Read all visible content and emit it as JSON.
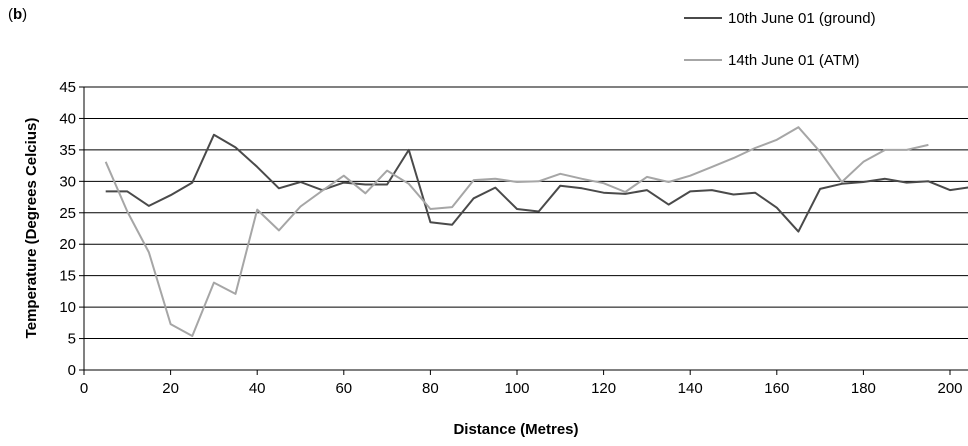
{
  "panel": {
    "open": "(",
    "letter": "b",
    "close": ")"
  },
  "chart_data": {
    "type": "line",
    "xlabel": "Distance (Metres)",
    "ylabel": "Temperature (Degrees Celcius)",
    "xlim": [
      0,
      200
    ],
    "ylim": [
      0,
      45
    ],
    "xticks": [
      0,
      20,
      40,
      60,
      80,
      100,
      120,
      140,
      160,
      180,
      200
    ],
    "yticks": [
      0,
      5,
      10,
      15,
      20,
      25,
      30,
      35,
      40,
      45
    ],
    "grid": "horizontal",
    "legend_position": "top-right",
    "series": [
      {
        "name": "10th June 01 (ground)",
        "color": "#4a4a4a",
        "x": [
          5,
          10,
          15,
          20,
          25,
          30,
          35,
          40,
          45,
          50,
          55,
          60,
          65,
          70,
          75,
          80,
          85,
          90,
          95,
          100,
          105,
          110,
          115,
          120,
          125,
          130,
          135,
          140,
          145,
          150,
          155,
          160,
          165,
          170,
          175,
          180,
          185,
          190,
          195,
          200,
          205
        ],
        "y": [
          28.4,
          28.4,
          26.1,
          27.8,
          29.8,
          37.4,
          35.4,
          32.3,
          28.9,
          29.9,
          28.6,
          29.8,
          29.5,
          29.5,
          35.0,
          23.5,
          23.1,
          27.3,
          29.0,
          25.6,
          25.2,
          29.3,
          28.9,
          28.2,
          28.0,
          28.6,
          26.3,
          28.4,
          28.6,
          27.9,
          28.2,
          25.8,
          22.0,
          28.8,
          29.6,
          29.9,
          30.4,
          29.8,
          30.0,
          28.6,
          29.1
        ]
      },
      {
        "name": "14th June 01 (ATM)",
        "color": "#a6a6a6",
        "x": [
          5,
          10,
          15,
          20,
          25,
          30,
          35,
          40,
          45,
          50,
          55,
          60,
          65,
          70,
          75,
          80,
          85,
          90,
          95,
          100,
          105,
          110,
          115,
          120,
          125,
          130,
          135,
          140,
          145,
          150,
          155,
          160,
          165,
          170,
          175,
          180,
          185,
          190,
          195
        ],
        "y": [
          33.1,
          25.2,
          18.7,
          7.3,
          5.4,
          13.9,
          12.1,
          25.5,
          22.2,
          26.0,
          28.5,
          30.9,
          28.1,
          31.7,
          29.6,
          25.6,
          25.9,
          30.2,
          30.4,
          29.9,
          30.0,
          31.2,
          30.4,
          29.7,
          28.3,
          30.7,
          29.9,
          30.9,
          32.3,
          33.7,
          35.3,
          36.6,
          38.6,
          34.7,
          29.9,
          33.1,
          35.0,
          35.0,
          35.8
        ]
      }
    ]
  }
}
